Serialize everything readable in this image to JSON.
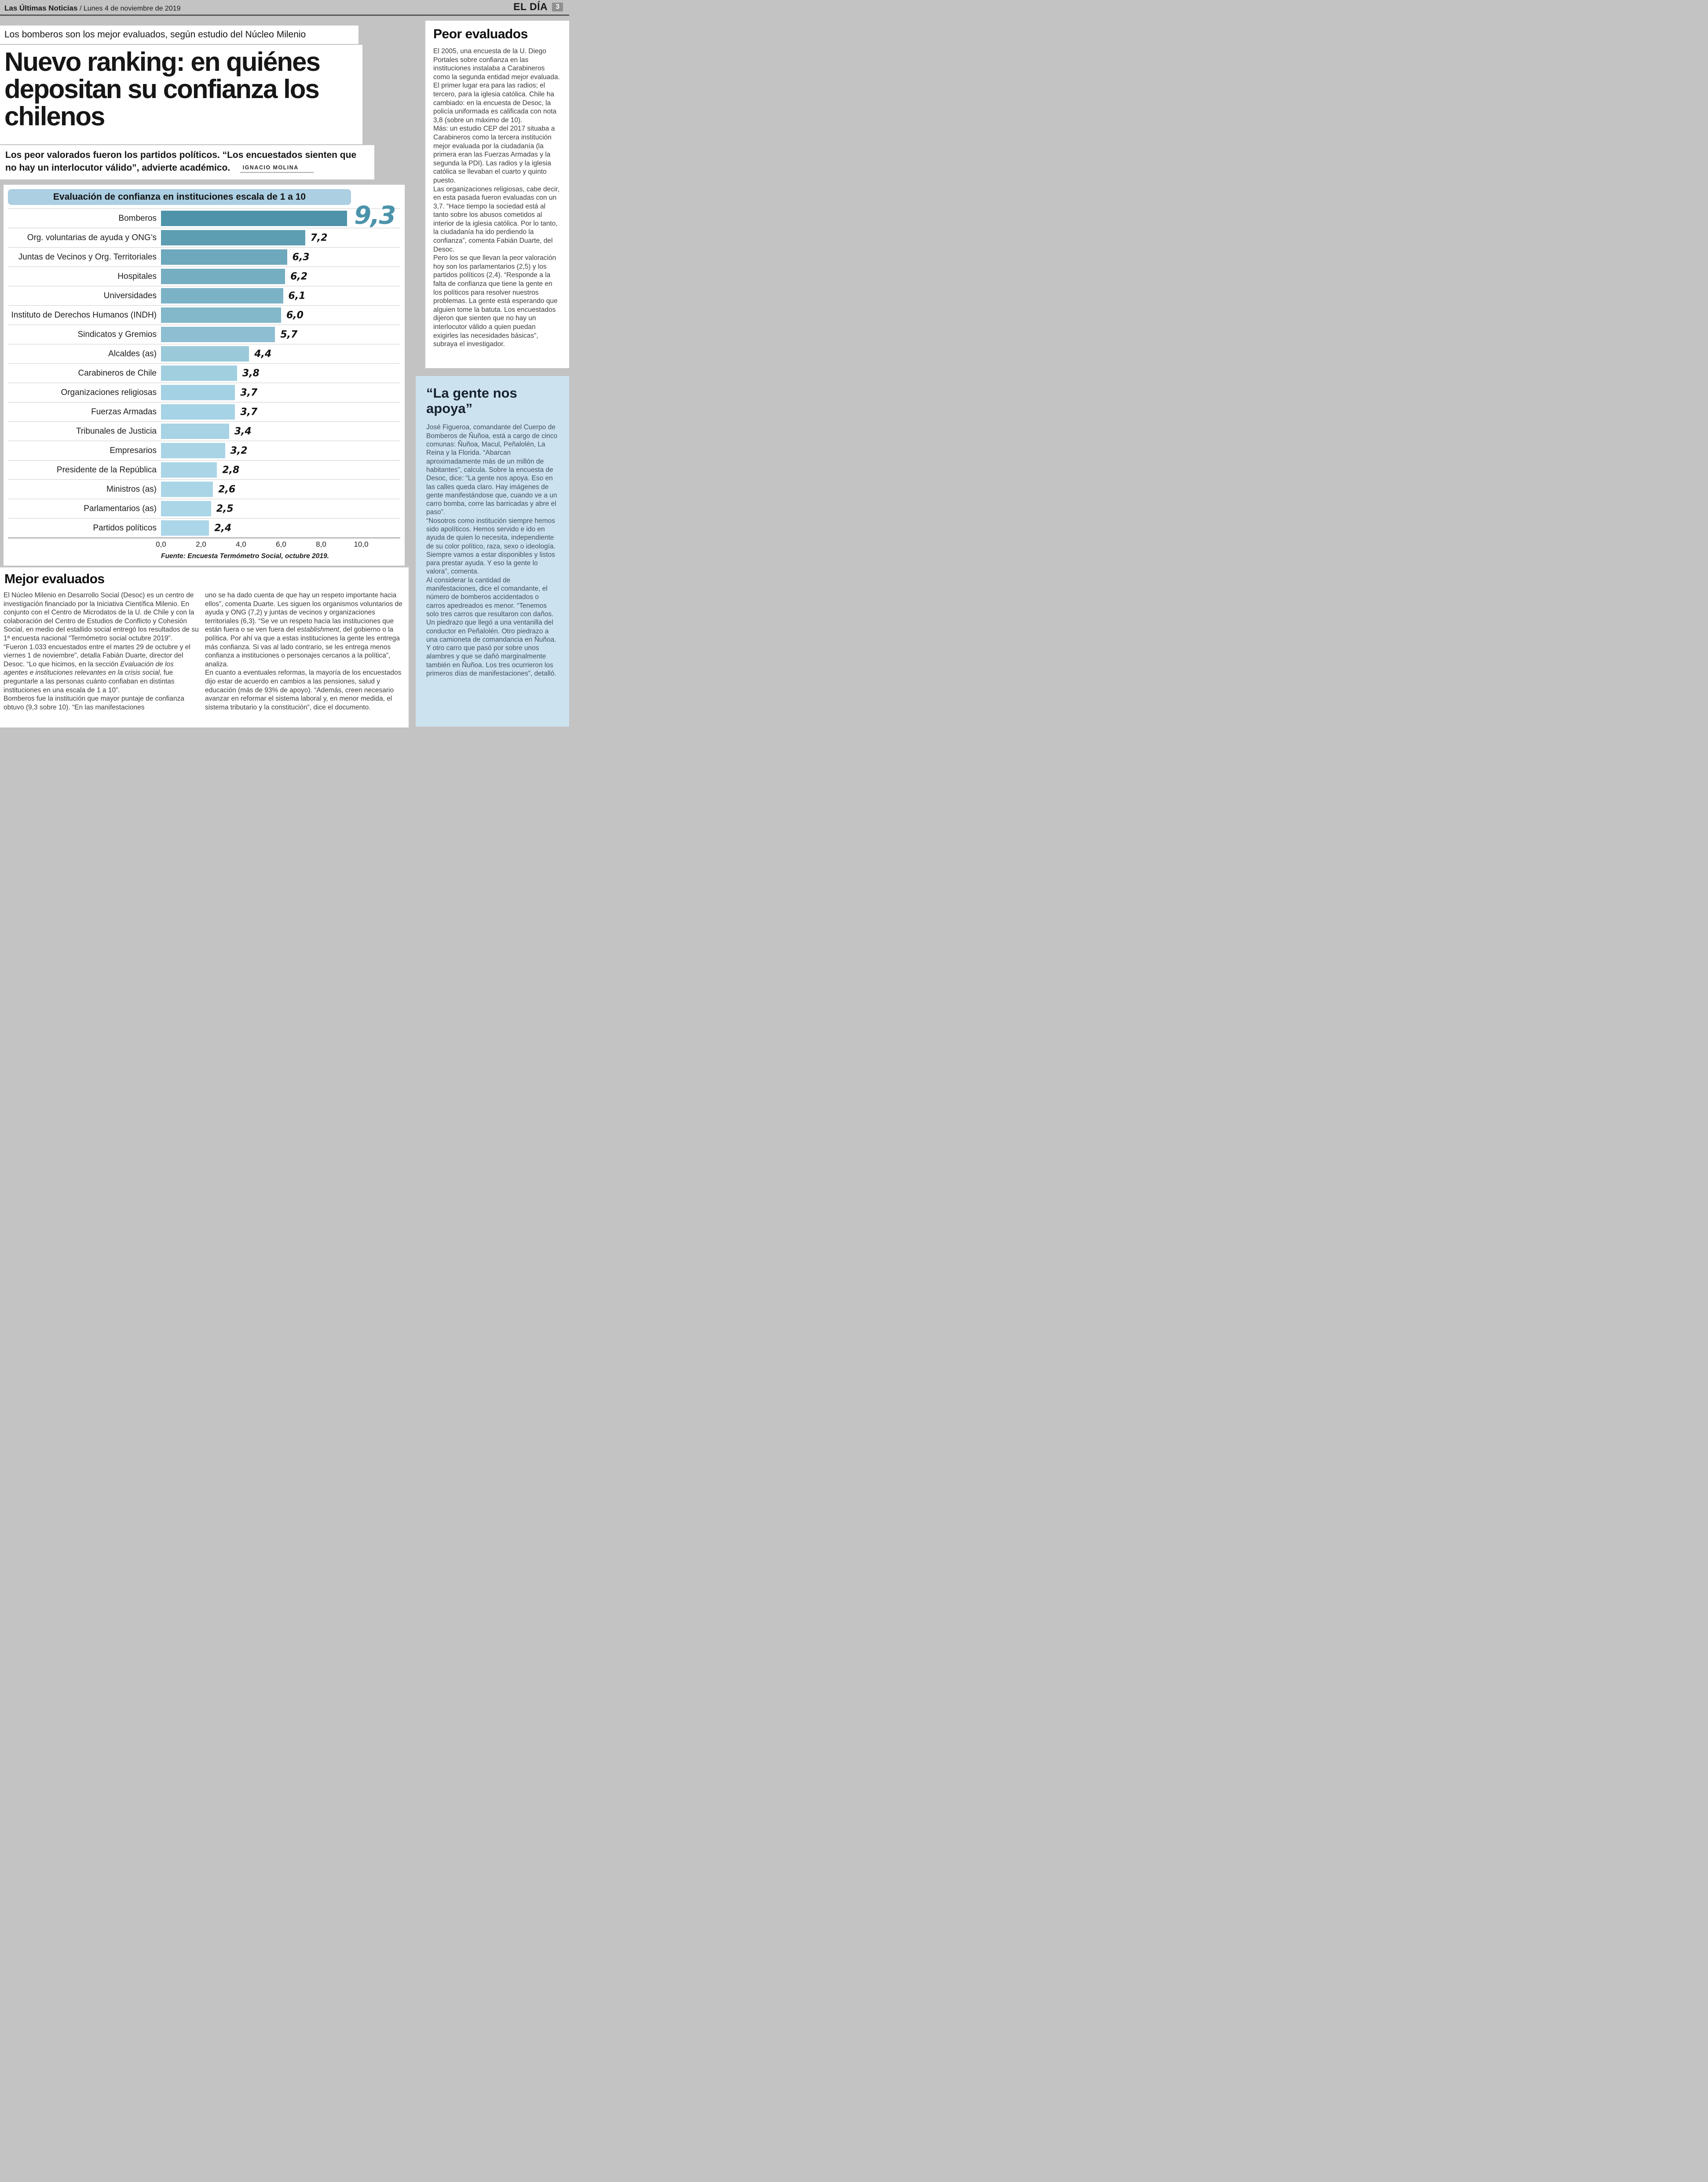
{
  "page_header": {
    "newspaper": "Las Últimas Noticias",
    "date": "/ Lunes 4 de noviembre de 2019",
    "section_brand": "EL DÍA",
    "page_number": "3"
  },
  "article": {
    "kicker": "Los bomberos son los mejor evaluados, según estudio del Núcleo Milenio",
    "headline": "Nuevo ranking: en quiénes depositan su confianza los chilenos",
    "subhead": "Los peor valorados fueron los partidos políticos. “Los encuestados sienten que no hay un interlocutor válido”, advierte académico.",
    "byline": "Ignacio Molina"
  },
  "chart_data": {
    "type": "bar",
    "orientation": "horizontal",
    "title": "Evaluación de confianza en instituciones escala de 1 a 10",
    "categories": [
      "Bomberos",
      "Org. voluntarias de ayuda y ONG’s",
      "Juntas de Vecinos y Org. Territoriales",
      "Hospitales",
      "Universidades",
      "Instituto de Derechos Humanos (INDH)",
      "Sindicatos y Gremios",
      "Alcaldes (as)",
      "Carabineros de Chile",
      "Organizaciones religiosas",
      "Fuerzas Armadas",
      "Tribunales de Justicia",
      "Empresarios",
      "Presidente de la República",
      "Ministros (as)",
      "Parlamentarios (as)",
      "Partidos políticos"
    ],
    "values": [
      9.3,
      7.2,
      6.3,
      6.2,
      6.1,
      6.0,
      5.7,
      4.4,
      3.8,
      3.7,
      3.7,
      3.4,
      3.2,
      2.8,
      2.6,
      2.5,
      2.4
    ],
    "value_labels": [
      "9,3",
      "7,2",
      "6,3",
      "6,2",
      "6,1",
      "6,0",
      "5,7",
      "4,4",
      "3,8",
      "3,7",
      "3,7",
      "3,4",
      "3,2",
      "2,8",
      "2,6",
      "2,5",
      "2,4"
    ],
    "bar_colors": [
      "#4e93a9",
      "#5e9eb3",
      "#6da8bc",
      "#75adc1",
      "#7cb2c6",
      "#83b7ca",
      "#8dbed1",
      "#9ac9da",
      "#a1cfe0",
      "#a4d1e3",
      "#a6d3e5",
      "#a7d3e5",
      "#a8d4e6",
      "#a9d5e7",
      "#a9d5e7",
      "#aad6e8",
      "#aad6e8"
    ],
    "highlight_value_color": "#4b93ab",
    "x_ticks": [
      "0,0",
      "2,0",
      "4,0",
      "6,0",
      "8,0",
      "10,0"
    ],
    "xlim": [
      0,
      10
    ],
    "grid": false,
    "legend": false,
    "source": "Fuente: Encuesta Termómetro Social, octubre 2019."
  },
  "peor_evaluados": {
    "heading": "Peor evaluados",
    "paragraphs": [
      "El 2005, una encuesta de la U. Diego Portales sobre confianza en las instituciones instalaba a Carabineros como la segunda entidad mejor evaluada. El primer lugar era para las radios; el tercero, para la iglesia católica. Chile ha cambiado: en la encuesta de Desoc, la policía uniformada es calificada con nota 3,8 (sobre un máximo de 10).",
      "Más: un estudio CEP del 2017 situaba a Carabineros como la tercera institución mejor evaluada por la ciudadanía (la primera eran las Fuerzas Armadas y la segunda la PDI). Las radios y la iglesia católica se llevaban el cuarto y quinto puesto.",
      "Las organizaciones religiosas, cabe decir, en esta pasada fueron evaluadas con un 3,7. “Hace tiempo la sociedad está al tanto sobre los abusos cometidos al interior de la iglesia católica. Por lo tanto, la ciudadanía ha ido perdiendo la confianza”, comenta Fabián Duarte, del Desoc.",
      "Pero los se que llevan la peor valoración hoy son los parlamentarios (2,5) y los partidos políticos (2,4). “Responde a la falta de confianza que tiene la gente en los políticos para resolver nuestros problemas. La gente está esperando que alguien tome la batuta. Los encuestados dijeron que sienten que no hay un interlocutor válido a quien puedan exigirles las necesidades básicas”, subraya el investigador."
    ]
  },
  "la_gente": {
    "heading": "“La gente nos apoya”",
    "paragraphs": [
      "José Figueroa, comandante del Cuerpo de Bomberos de Ñuñoa, está a cargo de cinco comunas: Ñuñoa, Macul, Peñalolén, La Reina y la Florida. “Abarcan aproximadamente más de un millón de habitantes”, calcula. Sobre la encuesta de Desoc, dice: “La gente nos apoya. Eso en las calles queda claro. Hay imágenes de gente manifestándose que, cuando ve a un carro bomba, corre las barricadas y abre el paso”.",
      "“Nosotros como institución siempre hemos sido apolíticos. Hemos servido e ido en ayuda de quien lo necesita, independiente de su color político, raza, sexo o ideología. Siempre vamos a estar disponibles y listos para prestar ayuda. Y eso la gente lo valora”, comenta.",
      "Al considerar la cantidad de manifestaciones, dice el comandante, el número de bomberos accidentados o carros apedreados es menor. “Tenemos solo tres carros que resultaron con daños. Un piedrazo que llegó a una ventanilla del conductor en Peñalolén. Otro piedrazo a una camioneta de comandancia en Ñuñoa. Y otro carro que pasó por sobre unos alambres y que se dañó marginalmente también en Ñuñoa. Los tres ocurrieron los primeros días de manifestaciones”, detalló."
    ]
  },
  "mejor_evaluados": {
    "heading": "Mejor evaluados",
    "col_left": [
      "El Núcleo Milenio en Desarrollo Social (Desoc) es un centro de investigación financiado por la Iniciativa Científica Milenio. En conjunto con el Centro de Microdatos de la U. de Chile y con la colaboración del Centro de Estudios de Conflicto y Cohesión Social, en medio del estallido social entregó los resultados de su 1ª encuesta nacional “Termómetro social octubre 2019”.",
      "“Fueron 1.033 encuestados entre el martes 29 de octubre y el viernes 1 de noviembre”, detalla Fabián Duarte, director del Desoc. “Lo que hicimos, en la sección *Evaluación de los agentes e instituciones relevantes en la crisis social*, fue preguntarle a las personas cuánto confiaban en distintas instituciones en una escala de 1 a 10”.",
      "Bomberos fue la institución que mayor puntaje de confianza obtuvo (9,3 sobre 10). “En las manifestaciones"
    ],
    "col_right": [
      "uno se ha dado cuenta de que hay un respeto importante hacia ellos”, comenta Duarte. Les siguen los organismos voluntarios de ayuda y ONG (7,2) y juntas de vecinos y organizaciones territoriales (6,3). “Se ve un respeto hacia las instituciones que están fuera o se ven fuera del *establishment*, del gobierno o la política. Por ahí va que a estas instituciones la gente les entrega más confianza. Si vas al lado contrario, se les entrega menos confianza a instituciones o personajes cercanos a la política”, analiza.",
      "En cuanto a eventuales reformas, la mayoría de los encuestados dijo estar de acuerdo en cambios a las pensiones, salud y educación (más de 93% de apoyo). “Además, creen necesario avanzar en reformar el sistema laboral y, en menor medida, el sistema tributario y la constitución”, dice el documento."
    ]
  },
  "colors": {
    "page_background": "#c3c3c3",
    "chart_title_bar": "#accfe2",
    "blue_panel": "#cde2ef",
    "accent_teal": "#4b93ab"
  }
}
